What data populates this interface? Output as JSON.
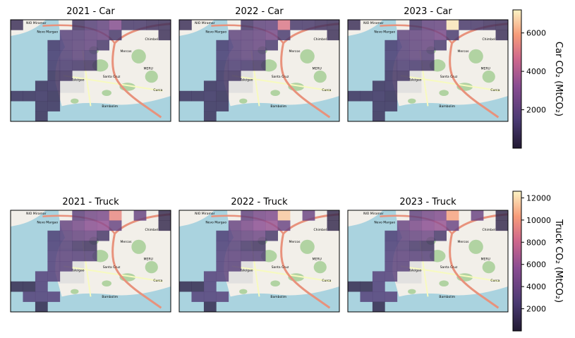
{
  "chart_data": {
    "type": "heatmap",
    "panels": [
      {
        "title": "2021 - Car",
        "row": 0,
        "year": "2021",
        "mode": "Car"
      },
      {
        "title": "2022 - Car",
        "row": 0,
        "year": "2022",
        "mode": "Car"
      },
      {
        "title": "2023 - Car",
        "row": 0,
        "year": "2023",
        "mode": "Car"
      },
      {
        "title": "2021 - Truck",
        "row": 1,
        "year": "2021",
        "mode": "Truck"
      },
      {
        "title": "2022 - Truck",
        "row": 1,
        "year": "2022",
        "mode": "Truck"
      },
      {
        "title": "2023 - Truck",
        "row": 1,
        "year": "2023",
        "mode": "Truck"
      }
    ],
    "colorbars": [
      {
        "label": "Car CO₂ (MtCO₂)",
        "range": [
          0,
          7200
        ],
        "ticks": [
          2000,
          4000,
          6000
        ]
      },
      {
        "label": "Truck CO₂ (MtCO₂)",
        "range": [
          0,
          12600
        ],
        "ticks": [
          2000,
          4000,
          6000,
          8000,
          10000,
          12000
        ]
      }
    ],
    "colormap": "magma",
    "grid": {
      "rows": 10,
      "cols": 13
    },
    "values": {
      "2021 - Car": [
        [
          800,
          0,
          0,
          0,
          0,
          1100,
          1600,
          2000,
          3000,
          1200,
          1200,
          1000,
          900
        ],
        [
          0,
          0,
          0,
          0,
          1700,
          1700,
          2000,
          2200,
          1200,
          0,
          0,
          0,
          800
        ],
        [
          0,
          0,
          0,
          1200,
          1600,
          1800,
          2000,
          1200,
          0,
          0,
          0,
          0,
          0
        ],
        [
          0,
          0,
          0,
          1300,
          1500,
          1800,
          1500,
          0,
          0,
          0,
          0,
          0,
          0
        ],
        [
          0,
          0,
          0,
          1200,
          1300,
          1200,
          1000,
          0,
          0,
          0,
          0,
          0,
          0
        ],
        [
          0,
          0,
          0,
          900,
          1000,
          0,
          0,
          0,
          0,
          0,
          0,
          0,
          0
        ],
        [
          0,
          0,
          900,
          1000,
          0,
          0,
          0,
          0,
          0,
          0,
          0,
          0,
          0
        ],
        [
          900,
          900,
          1000,
          800,
          0,
          0,
          0,
          0,
          0,
          0,
          0,
          0,
          0
        ],
        [
          0,
          0,
          900,
          900,
          0,
          0,
          0,
          0,
          0,
          0,
          0,
          0,
          0
        ],
        [
          0,
          0,
          800,
          0,
          0,
          0,
          0,
          0,
          0,
          0,
          0,
          0,
          0
        ]
      ],
      "2022 - Car": [
        [
          800,
          0,
          0,
          0,
          0,
          1200,
          1900,
          2000,
          5000,
          1200,
          1200,
          1000,
          900
        ],
        [
          0,
          0,
          0,
          0,
          1900,
          1900,
          2100,
          2500,
          1300,
          0,
          0,
          0,
          800
        ],
        [
          0,
          0,
          0,
          1300,
          1700,
          1900,
          2100,
          1300,
          0,
          0,
          0,
          0,
          0
        ],
        [
          0,
          0,
          0,
          1400,
          1600,
          1900,
          1600,
          0,
          0,
          0,
          0,
          0,
          0
        ],
        [
          0,
          0,
          0,
          1200,
          1400,
          1300,
          1100,
          0,
          0,
          0,
          0,
          0,
          0
        ],
        [
          0,
          0,
          0,
          1000,
          1000,
          0,
          0,
          0,
          0,
          0,
          0,
          0,
          0
        ],
        [
          0,
          0,
          900,
          1000,
          0,
          0,
          0,
          0,
          0,
          0,
          0,
          0,
          0
        ],
        [
          900,
          900,
          1000,
          800,
          0,
          0,
          0,
          0,
          0,
          0,
          0,
          0,
          0
        ],
        [
          0,
          0,
          900,
          900,
          0,
          0,
          0,
          0,
          0,
          0,
          0,
          0,
          0
        ],
        [
          0,
          0,
          800,
          0,
          0,
          0,
          0,
          0,
          0,
          0,
          0,
          0,
          0
        ]
      ],
      "2023 - Car": [
        [
          800,
          0,
          0,
          0,
          0,
          1200,
          2000,
          2100,
          7000,
          1200,
          1200,
          1000,
          900
        ],
        [
          0,
          0,
          0,
          0,
          1900,
          2000,
          2200,
          2600,
          1300,
          0,
          0,
          0,
          800
        ],
        [
          0,
          0,
          0,
          1300,
          1700,
          1900,
          2100,
          1300,
          0,
          0,
          0,
          0,
          0
        ],
        [
          0,
          0,
          0,
          1400,
          1600,
          1900,
          1600,
          0,
          0,
          0,
          0,
          0,
          0
        ],
        [
          0,
          0,
          0,
          1200,
          1400,
          1300,
          1100,
          0,
          0,
          0,
          0,
          0,
          0
        ],
        [
          0,
          0,
          0,
          1000,
          1000,
          0,
          0,
          0,
          0,
          0,
          0,
          0,
          0
        ],
        [
          0,
          0,
          900,
          1000,
          0,
          0,
          0,
          0,
          0,
          0,
          0,
          0,
          0
        ],
        [
          900,
          900,
          1000,
          800,
          0,
          0,
          0,
          0,
          0,
          0,
          0,
          0,
          0
        ],
        [
          0,
          0,
          900,
          900,
          0,
          0,
          0,
          0,
          0,
          0,
          0,
          0,
          0
        ],
        [
          0,
          0,
          800,
          0,
          0,
          0,
          0,
          0,
          0,
          0,
          0,
          0,
          0
        ]
      ],
      "2021 - Truck": [
        [
          0,
          0,
          0,
          0,
          0,
          3300,
          4400,
          4800,
          9500,
          0,
          3800,
          0,
          1000
        ],
        [
          0,
          0,
          0,
          0,
          3600,
          4500,
          5400,
          5800,
          3800,
          0,
          0,
          0,
          1000
        ],
        [
          0,
          0,
          0,
          2500,
          3200,
          3600,
          4000,
          2000,
          0,
          0,
          0,
          0,
          0
        ],
        [
          0,
          0,
          0,
          2700,
          2700,
          2000,
          1600,
          0,
          0,
          0,
          0,
          0,
          0
        ],
        [
          0,
          0,
          0,
          3000,
          3200,
          3000,
          2700,
          0,
          0,
          0,
          0,
          0,
          0
        ],
        [
          0,
          0,
          0,
          3000,
          3000,
          0,
          0,
          0,
          0,
          0,
          0,
          0,
          0
        ],
        [
          0,
          0,
          3000,
          3100,
          0,
          0,
          0,
          0,
          0,
          0,
          0,
          0,
          0
        ],
        [
          1000,
          1000,
          2800,
          0,
          0,
          0,
          0,
          0,
          0,
          0,
          0,
          0,
          0
        ],
        [
          0,
          2800,
          2800,
          3000,
          0,
          0,
          0,
          0,
          0,
          0,
          0,
          0,
          0
        ],
        [
          0,
          0,
          900,
          0,
          0,
          0,
          0,
          0,
          0,
          0,
          0,
          0,
          0
        ]
      ],
      "2022 - Truck": [
        [
          0,
          0,
          0,
          0,
          0,
          3500,
          4600,
          5000,
          11500,
          0,
          4000,
          0,
          1000
        ],
        [
          0,
          0,
          0,
          0,
          3800,
          4700,
          5600,
          6000,
          4000,
          0,
          0,
          0,
          1000
        ],
        [
          0,
          0,
          0,
          2600,
          3300,
          3700,
          4100,
          2100,
          0,
          0,
          0,
          0,
          0
        ],
        [
          0,
          0,
          0,
          2800,
          2800,
          2100,
          1700,
          0,
          0,
          0,
          0,
          0,
          0
        ],
        [
          0,
          0,
          0,
          3100,
          3300,
          3100,
          2800,
          0,
          0,
          0,
          0,
          0,
          0
        ],
        [
          0,
          0,
          0,
          3100,
          3100,
          0,
          0,
          0,
          0,
          0,
          0,
          0,
          0
        ],
        [
          0,
          0,
          3100,
          3200,
          0,
          0,
          0,
          0,
          0,
          0,
          0,
          0,
          0
        ],
        [
          1000,
          1000,
          2900,
          0,
          0,
          0,
          0,
          0,
          0,
          0,
          0,
          0,
          0
        ],
        [
          0,
          2900,
          2900,
          3100,
          0,
          0,
          0,
          0,
          0,
          0,
          0,
          0,
          0
        ],
        [
          0,
          0,
          900,
          0,
          0,
          0,
          0,
          0,
          0,
          0,
          0,
          0,
          0
        ]
      ],
      "2023 - Truck": [
        [
          0,
          0,
          0,
          0,
          0,
          3500,
          4500,
          5000,
          10500,
          0,
          4000,
          0,
          1000
        ],
        [
          0,
          0,
          0,
          0,
          3800,
          4700,
          5500,
          6000,
          4000,
          0,
          0,
          0,
          1000
        ],
        [
          0,
          0,
          0,
          2600,
          3300,
          3700,
          4100,
          2100,
          0,
          0,
          0,
          0,
          0
        ],
        [
          0,
          0,
          0,
          2800,
          2800,
          2100,
          1700,
          0,
          0,
          0,
          0,
          0,
          0
        ],
        [
          0,
          0,
          0,
          3100,
          3300,
          3100,
          2800,
          0,
          0,
          0,
          0,
          0,
          0
        ],
        [
          0,
          0,
          0,
          3100,
          3100,
          0,
          0,
          0,
          0,
          0,
          0,
          0,
          0
        ],
        [
          0,
          0,
          3100,
          3200,
          0,
          0,
          0,
          0,
          0,
          0,
          0,
          0,
          0
        ],
        [
          1000,
          1000,
          2900,
          0,
          0,
          0,
          0,
          0,
          0,
          0,
          0,
          0,
          0
        ],
        [
          0,
          2900,
          2900,
          3100,
          0,
          0,
          0,
          0,
          0,
          0,
          0,
          0,
          0
        ],
        [
          0,
          0,
          900,
          0,
          0,
          0,
          0,
          0,
          0,
          0,
          0,
          0,
          0
        ]
      ]
    },
    "basemap": {
      "labels": [
        "Mercos",
        "Chimbel",
        "Santa Cruz",
        "Taleigao",
        "Bambolim",
        "Curca",
        "Nevo Margao",
        "NIO Miramar",
        "MERU"
      ],
      "colors": {
        "sea": "#aad3df",
        "land": "#f2efe9",
        "vegetation": "#add19e",
        "urban": "#e0dfdf",
        "highway": "#e8927c",
        "road": "#f7fabf"
      }
    }
  }
}
